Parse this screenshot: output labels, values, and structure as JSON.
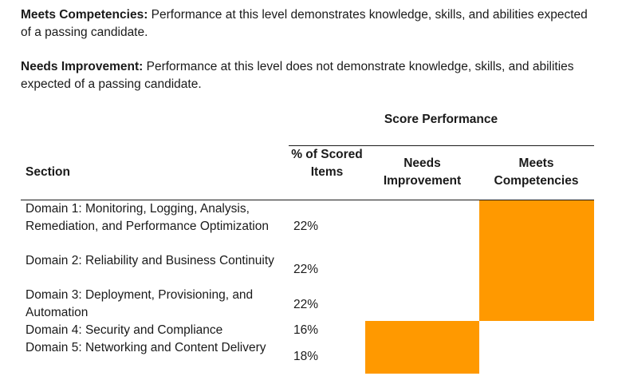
{
  "definitions": {
    "meets": {
      "term": "Meets Competencies:",
      "text": " Performance at this level demonstrates knowledge, skills, and abilities expected of a passing candidate."
    },
    "needs": {
      "term": "Needs Improvement:",
      "text": " Performance at this level does not demonstrate knowledge, skills, and abilities expected of a passing candidate."
    }
  },
  "table": {
    "group_header": "Score Performance",
    "columns": {
      "section": "Section",
      "pct": "% of Scored Items",
      "needs": "Needs Improvement",
      "meets": "Meets Competencies"
    },
    "rows": [
      {
        "section": "Domain 1: Monitoring, Logging, Analysis, Remediation, and Performance Optimization",
        "pct": "22%",
        "result": "meets"
      },
      {
        "section": "Domain 2: Reliability and Business Continuity",
        "pct": "22%",
        "result": "meets"
      },
      {
        "section": "Domain 3: Deployment, Provisioning, and Automation",
        "pct": "22%",
        "result": "meets"
      },
      {
        "section": "Domain 4: Security and Compliance",
        "pct": "16%",
        "result": "needs"
      },
      {
        "section": "Domain 5: Networking and Content Delivery",
        "pct": "18%",
        "result": "needs"
      }
    ],
    "colors": {
      "indicator": "#ff9900"
    }
  }
}
